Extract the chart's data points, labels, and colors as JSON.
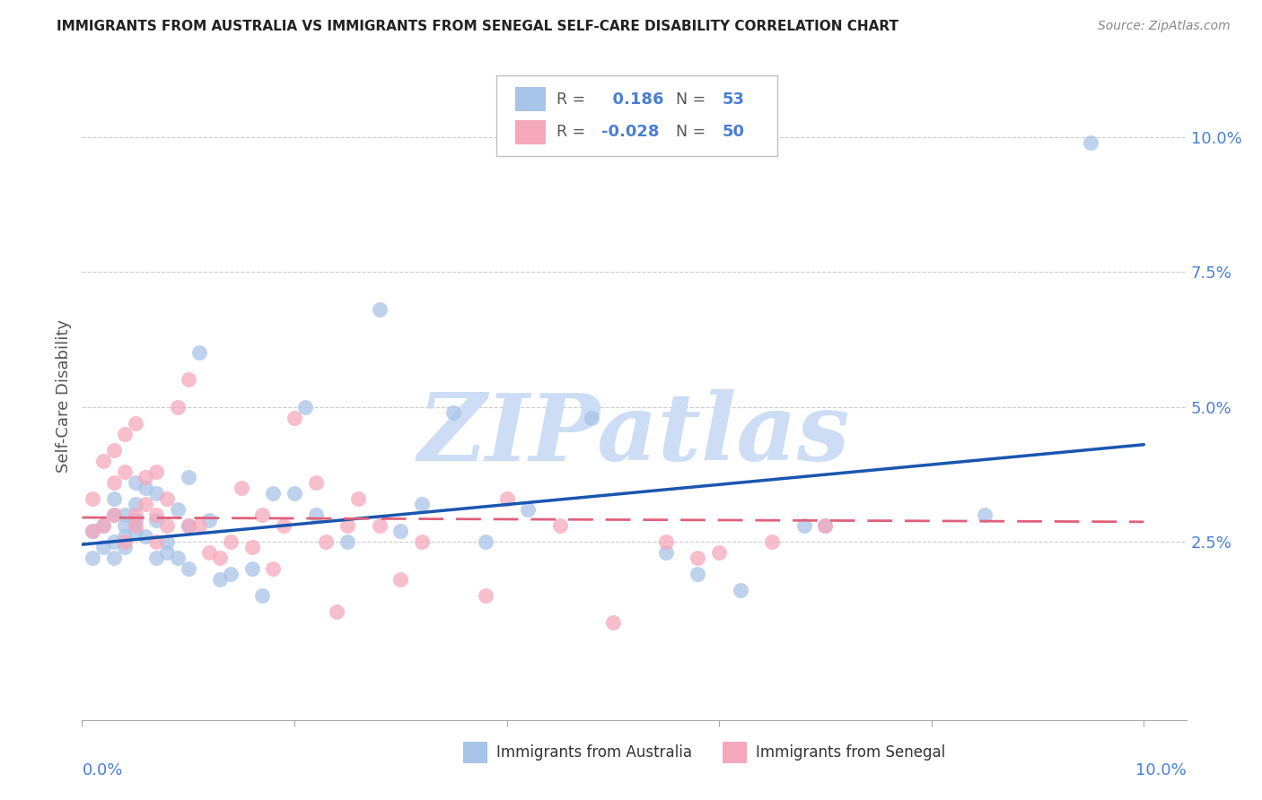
{
  "title": "IMMIGRANTS FROM AUSTRALIA VS IMMIGRANTS FROM SENEGAL SELF-CARE DISABILITY CORRELATION CHART",
  "source": "Source: ZipAtlas.com",
  "ylabel": "Self-Care Disability",
  "xlim": [
    0.0,
    0.104
  ],
  "ylim": [
    -0.008,
    0.112
  ],
  "australia_color": "#a8c4e8",
  "senegal_color": "#f5a8bc",
  "australia_line_color": "#1a56b0",
  "senegal_line_color": "#e0607a",
  "australia_R": 0.186,
  "australia_N": 53,
  "senegal_R": -0.028,
  "senegal_N": 50,
  "watermark": "ZIPatlas",
  "watermark_color": "#ccddf5",
  "yticks": [
    0.025,
    0.05,
    0.075,
    0.1
  ],
  "ytick_labels": [
    "2.5%",
    "5.0%",
    "7.5%",
    "10.0%"
  ],
  "aus_line_x0": 0.0,
  "aus_line_y0": 0.0245,
  "aus_line_x1": 0.1,
  "aus_line_y1": 0.043,
  "sen_line_x0": 0.0,
  "sen_line_y0": 0.0295,
  "sen_line_x1": 0.1,
  "sen_line_y1": 0.0287,
  "australia_x": [
    0.001,
    0.001,
    0.002,
    0.002,
    0.003,
    0.003,
    0.003,
    0.003,
    0.004,
    0.004,
    0.004,
    0.004,
    0.005,
    0.005,
    0.005,
    0.005,
    0.006,
    0.006,
    0.007,
    0.007,
    0.007,
    0.008,
    0.008,
    0.009,
    0.009,
    0.01,
    0.01,
    0.01,
    0.011,
    0.012,
    0.013,
    0.014,
    0.016,
    0.017,
    0.018,
    0.02,
    0.021,
    0.022,
    0.025,
    0.028,
    0.03,
    0.032,
    0.035,
    0.038,
    0.042,
    0.048,
    0.055,
    0.058,
    0.062,
    0.068,
    0.07,
    0.085,
    0.095
  ],
  "australia_y": [
    0.027,
    0.022,
    0.028,
    0.024,
    0.03,
    0.025,
    0.033,
    0.022,
    0.028,
    0.026,
    0.03,
    0.024,
    0.027,
    0.032,
    0.036,
    0.029,
    0.026,
    0.035,
    0.034,
    0.029,
    0.022,
    0.025,
    0.023,
    0.031,
    0.022,
    0.02,
    0.037,
    0.028,
    0.06,
    0.029,
    0.018,
    0.019,
    0.02,
    0.015,
    0.034,
    0.034,
    0.05,
    0.03,
    0.025,
    0.068,
    0.027,
    0.032,
    0.049,
    0.025,
    0.031,
    0.048,
    0.023,
    0.019,
    0.016,
    0.028,
    0.028,
    0.03,
    0.099
  ],
  "senegal_x": [
    0.001,
    0.001,
    0.002,
    0.002,
    0.003,
    0.003,
    0.003,
    0.004,
    0.004,
    0.004,
    0.005,
    0.005,
    0.005,
    0.006,
    0.006,
    0.007,
    0.007,
    0.007,
    0.008,
    0.008,
    0.009,
    0.01,
    0.01,
    0.011,
    0.012,
    0.013,
    0.014,
    0.015,
    0.016,
    0.017,
    0.018,
    0.019,
    0.02,
    0.022,
    0.023,
    0.024,
    0.025,
    0.026,
    0.028,
    0.03,
    0.032,
    0.038,
    0.04,
    0.045,
    0.05,
    0.055,
    0.058,
    0.06,
    0.065,
    0.07
  ],
  "senegal_y": [
    0.027,
    0.033,
    0.04,
    0.028,
    0.042,
    0.03,
    0.036,
    0.025,
    0.038,
    0.045,
    0.03,
    0.028,
    0.047,
    0.032,
    0.037,
    0.025,
    0.038,
    0.03,
    0.028,
    0.033,
    0.05,
    0.028,
    0.055,
    0.028,
    0.023,
    0.022,
    0.025,
    0.035,
    0.024,
    0.03,
    0.02,
    0.028,
    0.048,
    0.036,
    0.025,
    0.012,
    0.028,
    0.033,
    0.028,
    0.018,
    0.025,
    0.015,
    0.033,
    0.028,
    0.01,
    0.025,
    0.022,
    0.023,
    0.025,
    0.028
  ]
}
